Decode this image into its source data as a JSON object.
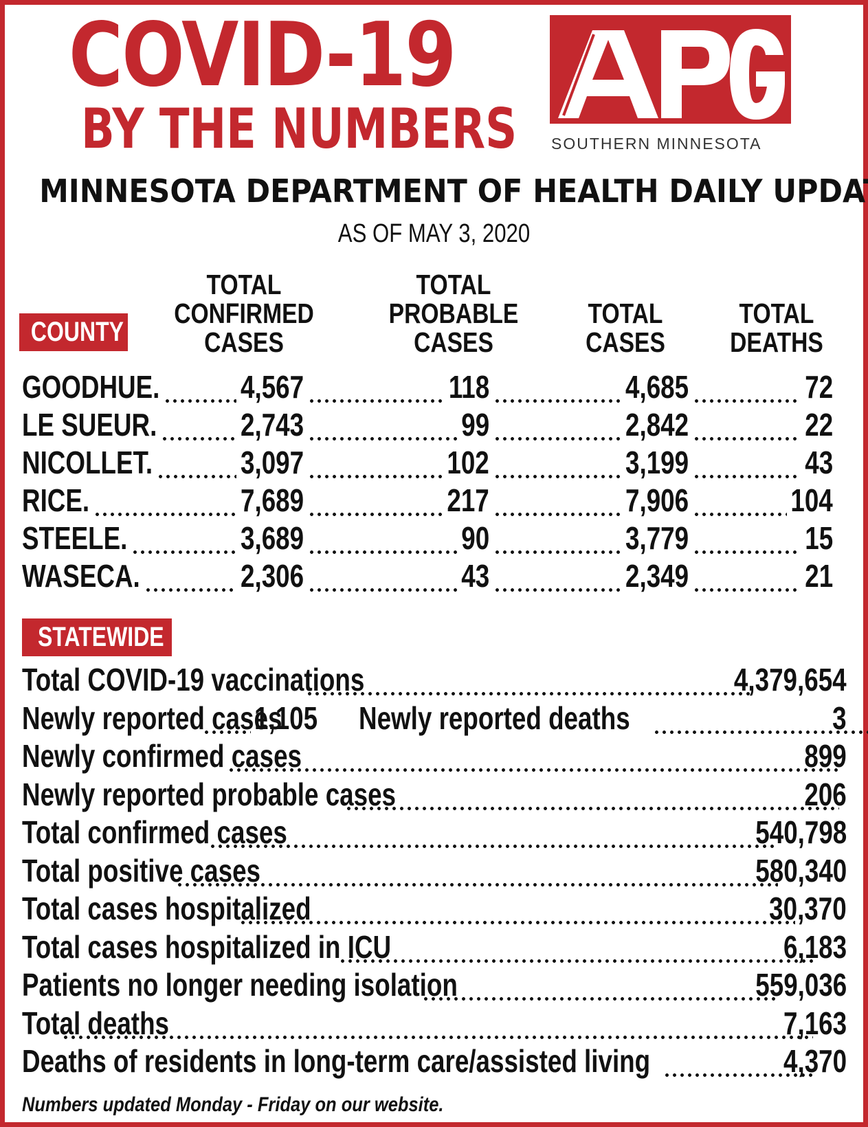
{
  "header": {
    "title_line1": "COVID-19",
    "title_line2": "BY THE NUMBERS",
    "logo_text": "APG",
    "logo_subtitle": "SOUTHERN MINNESOTA",
    "headline": "MINNESOTA DEPARTMENT OF HEALTH DAILY UPDATE",
    "as_of": "AS OF MAY 3, 2020"
  },
  "colors": {
    "accent": "#c3282e",
    "text": "#111111"
  },
  "county_table": {
    "badge": "COUNTY",
    "columns": {
      "confirmed": [
        "TOTAL",
        "CONFIRMED",
        "CASES"
      ],
      "probable": [
        "TOTAL",
        "PROBABLE",
        "CASES"
      ],
      "total": [
        "TOTAL",
        "CASES"
      ],
      "deaths": [
        "TOTAL",
        "DEATHS"
      ]
    },
    "rows": [
      {
        "name": "GOODHUE.",
        "confirmed": "4,567",
        "probable": "118",
        "total": "4,685",
        "deaths": "72"
      },
      {
        "name": "LE SUEUR.",
        "confirmed": "2,743",
        "probable": "99",
        "total": "2,842",
        "deaths": "22"
      },
      {
        "name": "NICOLLET.",
        "confirmed": "3,097",
        "probable": "102",
        "total": "3,199",
        "deaths": "43"
      },
      {
        "name": "RICE.",
        "confirmed": "7,689",
        "probable": "217",
        "total": "7,906",
        "deaths": "104"
      },
      {
        "name": "STEELE.",
        "confirmed": "3,689",
        "probable": "90",
        "total": "3,779",
        "deaths": "15"
      },
      {
        "name": "WASECA.",
        "confirmed": "2,306",
        "probable": "43",
        "total": "2,349",
        "deaths": "21"
      }
    ]
  },
  "statewide": {
    "badge": "STATEWIDE",
    "vaccinations": {
      "label": "Total COVID-19 vaccinations",
      "value": "4,379,654"
    },
    "new_cases": {
      "label": "Newly reported cases",
      "value": "1,105"
    },
    "new_deaths": {
      "label": "Newly reported deaths",
      "value": "3"
    },
    "rows": [
      {
        "label": "Newly confirmed cases",
        "value": "899"
      },
      {
        "label": "Newly reported probable cases",
        "value": "206"
      },
      {
        "label": "Total confirmed cases",
        "value": "540,798"
      },
      {
        "label": "Total positive cases",
        "value": "580,340"
      },
      {
        "label": "Total cases hospitalized",
        "value": "30,370"
      },
      {
        "label": "Total cases hospitalized in ICU",
        "value": "6,183"
      },
      {
        "label": "Patients no longer needing isolation",
        "value": "559,036"
      },
      {
        "label": "Total deaths",
        "value": "7,163"
      },
      {
        "label": "Deaths of residents in long-term care/assisted living",
        "value": "4,370"
      }
    ]
  },
  "footer": "Numbers updated Monday - Friday on our website."
}
